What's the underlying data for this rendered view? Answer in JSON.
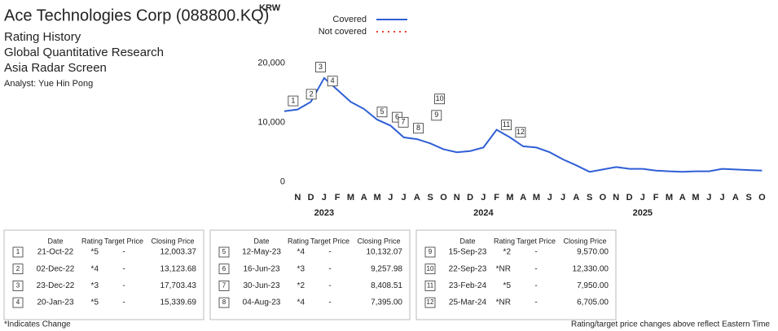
{
  "header": {
    "title": "Ace Technologies Corp (088800.KQ)",
    "lines": [
      "Rating History",
      "Global Quantitative Research",
      "Asia Radar Screen"
    ],
    "analyst": "Analyst: Yue Hin Pong"
  },
  "chart_data": {
    "type": "line",
    "y_label": "KRW",
    "legend": [
      {
        "name": "Covered",
        "color": "#2f5fd6",
        "style": "solid"
      },
      {
        "name": "Not covered",
        "color": "#e8402a",
        "style": "dotted"
      }
    ],
    "categories": [
      "N",
      "D",
      "J",
      "F",
      "M",
      "A",
      "M",
      "J",
      "J",
      "A",
      "S",
      "O",
      "N",
      "D",
      "J",
      "F",
      "M",
      "A",
      "M",
      "J",
      "J",
      "A",
      "S",
      "O",
      "N",
      "D",
      "J",
      "F",
      "M",
      "A",
      "M",
      "J",
      "J",
      "A",
      "S",
      "O"
    ],
    "years": [
      "2023",
      "2024",
      "2025"
    ],
    "ylim": [
      -1000,
      29000
    ],
    "yticks": [
      {
        "value": 0,
        "label": "0"
      },
      {
        "value": 10000,
        "label": "10,000"
      },
      {
        "value": 20000,
        "label": "20,000"
      }
    ],
    "series": [
      {
        "name": "Covered",
        "color": "#2f5fd6",
        "x": [
          "2022-10",
          "2022-11",
          "2022-12",
          "2023-01",
          "2023-02",
          "2023-03",
          "2023-04",
          "2023-05",
          "2023-06",
          "2023-07",
          "2023-08",
          "2023-09",
          "2023-10",
          "2023-11",
          "2023-12",
          "2024-01",
          "2024-02",
          "2024-03",
          "2024-04",
          "2024-05",
          "2024-06",
          "2024-07",
          "2024-08",
          "2024-09",
          "2024-10",
          "2024-11",
          "2024-12",
          "2025-01",
          "2025-02",
          "2025-03",
          "2025-04",
          "2025-05",
          "2025-06",
          "2025-07",
          "2025-08",
          "2025-09",
          "2025-10"
        ],
        "values": [
          11900,
          12200,
          13500,
          17500,
          15500,
          13500,
          12300,
          10500,
          9500,
          7500,
          7200,
          6500,
          5500,
          5000,
          5200,
          5800,
          8800,
          7500,
          6000,
          5800,
          5000,
          3800,
          2800,
          1700,
          2100,
          2500,
          2200,
          2200,
          1900,
          1800,
          1700,
          1800,
          1800,
          2200,
          2100,
          2000,
          1900
        ]
      }
    ]
  },
  "table": {
    "headers": [
      "Date",
      "Rating",
      "Target Price",
      "Closing Price"
    ],
    "groups": [
      [
        [
          "1",
          "21-Oct-22",
          "*5",
          "-",
          "12,003.37"
        ],
        [
          "2",
          "02-Dec-22",
          "*4",
          "-",
          "13,123.68"
        ],
        [
          "3",
          "23-Dec-22",
          "*3",
          "-",
          "17,703.43"
        ],
        [
          "4",
          "20-Jan-23",
          "*5",
          "-",
          "15,339.69"
        ]
      ],
      [
        [
          "5",
          "12-May-23",
          "*4",
          "-",
          "10,132.07"
        ],
        [
          "6",
          "16-Jun-23",
          "*3",
          "-",
          "9,257.98"
        ],
        [
          "7",
          "30-Jun-23",
          "*2",
          "-",
          "8,408.51"
        ],
        [
          "8",
          "04-Aug-23",
          "*4",
          "-",
          "7,395.00"
        ]
      ],
      [
        [
          "9",
          "15-Sep-23",
          "*2",
          "-",
          "9,570.00"
        ],
        [
          "10",
          "22-Sep-23",
          "*NR",
          "-",
          "12,330.00"
        ],
        [
          "11",
          "23-Feb-24",
          "*5",
          "-",
          "7,950.00"
        ],
        [
          "12",
          "25-Mar-24",
          "*NR",
          "-",
          "6,705.00"
        ]
      ]
    ]
  },
  "footer": {
    "left": "*Indicates Change",
    "right": "Rating/target price changes above reflect Eastern Time"
  }
}
